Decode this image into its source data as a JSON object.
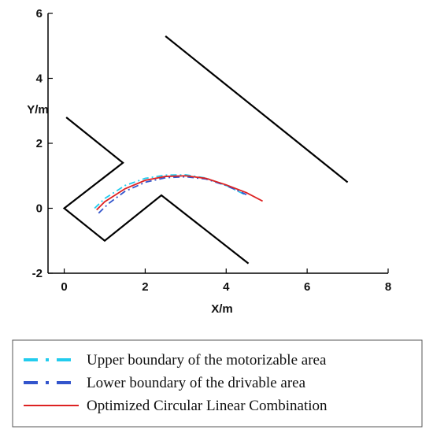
{
  "chart_data": {
    "type": "line",
    "title": "",
    "xlabel": "X/m",
    "ylabel": "Y/m",
    "xlim": [
      -0.4,
      8
    ],
    "ylim": [
      -2,
      6
    ],
    "xticks": [
      0,
      2,
      4,
      6,
      8
    ],
    "yticks": [
      -2,
      0,
      2,
      4,
      6
    ],
    "grid": false,
    "legend_position": "bottom",
    "boundaries": [
      {
        "id": "left-boundary",
        "color": "#000000",
        "x": [
          0.05,
          1.45,
          0,
          1.0,
          2.4,
          4.55
        ],
        "y": [
          2.8,
          1.4,
          0,
          -1.0,
          0.4,
          -1.7
        ]
      },
      {
        "id": "right-boundary",
        "color": "#000000",
        "x": [
          2.5,
          7.0
        ],
        "y": [
          5.3,
          0.8
        ]
      }
    ],
    "series": [
      {
        "name": "Upper boundary of the motorizable area",
        "color": "#22ccee",
        "dash": "8,4,2,4",
        "x": [
          0.75,
          1.0,
          1.5,
          2.0,
          2.5,
          3.0,
          3.5,
          4.0,
          4.5
        ],
        "y": [
          0.0,
          0.3,
          0.7,
          0.92,
          1.02,
          1.03,
          0.93,
          0.7,
          0.4
        ]
      },
      {
        "name": "Lower boundary of the drivable area",
        "color": "#3355cc",
        "dash": "8,4,2,4",
        "x": [
          0.85,
          1.1,
          1.5,
          2.0,
          2.5,
          3.0,
          3.5,
          4.0,
          4.5
        ],
        "y": [
          -0.15,
          0.15,
          0.52,
          0.8,
          0.94,
          0.97,
          0.9,
          0.7,
          0.42
        ]
      },
      {
        "name": "Optimized Circular Linear Combination",
        "color": "#dd2222",
        "dash": "",
        "x": [
          0.8,
          1.0,
          1.5,
          2.0,
          2.5,
          3.0,
          3.5,
          4.0,
          4.5,
          4.9
        ],
        "y": [
          -0.05,
          0.2,
          0.6,
          0.86,
          0.98,
          1.0,
          0.92,
          0.72,
          0.48,
          0.22
        ]
      }
    ]
  }
}
